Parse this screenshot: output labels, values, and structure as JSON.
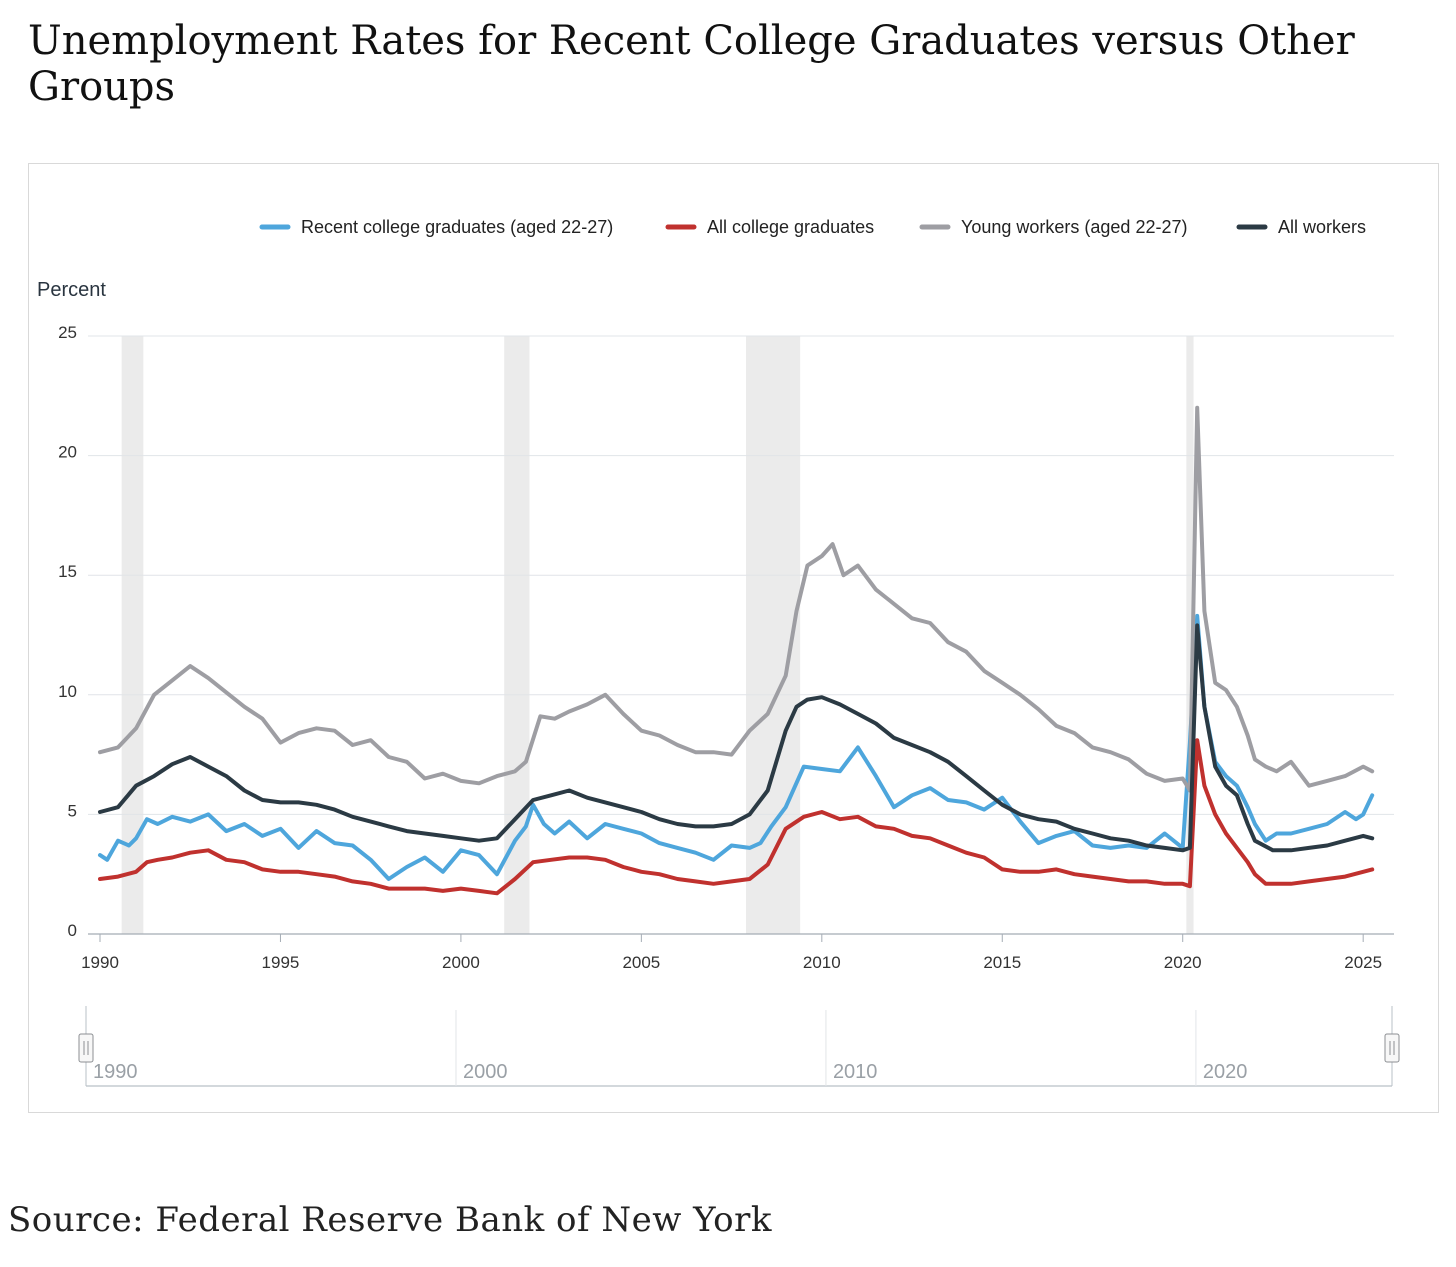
{
  "title": "Unemployment Rates for Recent College Graduates versus Other Groups",
  "source": "Source: Federal Reserve Bank of New York",
  "colors": {
    "recent_grads": "#4ea6dc",
    "all_grads": "#c0312e",
    "young_workers": "#9e9ea3",
    "all_workers": "#2b3a44",
    "recession": "#ebebeb",
    "grid": "#e1e4e8"
  },
  "chart_data": {
    "type": "line",
    "ylabel": "Percent",
    "ylim": [
      0,
      25
    ],
    "yticks": [
      0,
      5,
      10,
      15,
      20,
      25
    ],
    "xlim": [
      1990,
      2025.3
    ],
    "xticks": [
      1990,
      1995,
      2000,
      2005,
      2010,
      2015,
      2020,
      2025
    ],
    "navigator_ticks": [
      1990,
      2000,
      2010,
      2020
    ],
    "grid": true,
    "legend_position": "top",
    "recessions": [
      [
        1990.6,
        1991.2
      ],
      [
        2001.2,
        2001.9
      ],
      [
        2007.9,
        2009.4
      ],
      [
        2020.1,
        2020.3
      ]
    ],
    "series": [
      {
        "name": "Recent college graduates (aged 22-27)",
        "key": "recent_grads",
        "x": [
          1990,
          1990.2,
          1990.5,
          1990.8,
          1991,
          1991.3,
          1991.6,
          1992,
          1992.5,
          1993,
          1993.5,
          1994,
          1994.5,
          1995,
          1995.5,
          1996,
          1996.5,
          1997,
          1997.5,
          1998,
          1998.5,
          1999,
          1999.5,
          2000,
          2000.5,
          2001,
          2001.5,
          2001.8,
          2002,
          2002.3,
          2002.6,
          2003,
          2003.5,
          2004,
          2004.5,
          2005,
          2005.5,
          2006,
          2006.5,
          2007,
          2007.5,
          2008,
          2008.3,
          2008.6,
          2009,
          2009.5,
          2010,
          2010.5,
          2011,
          2011.5,
          2012,
          2012.5,
          2013,
          2013.5,
          2014,
          2014.5,
          2015,
          2015.5,
          2016,
          2016.5,
          2017,
          2017.5,
          2018,
          2018.5,
          2019,
          2019.5,
          2020,
          2020.2,
          2020.4,
          2020.6,
          2020.9,
          2021.2,
          2021.5,
          2021.8,
          2022,
          2022.3,
          2022.6,
          2023,
          2023.5,
          2024,
          2024.5,
          2024.8,
          2025,
          2025.25
        ],
        "values": [
          3.3,
          3.1,
          3.9,
          3.7,
          4.0,
          4.8,
          4.6,
          4.9,
          4.7,
          5.0,
          4.3,
          4.6,
          4.1,
          4.4,
          3.6,
          4.3,
          3.8,
          3.7,
          3.1,
          2.3,
          2.8,
          3.2,
          2.6,
          3.5,
          3.3,
          2.5,
          3.9,
          4.5,
          5.4,
          4.6,
          4.2,
          4.7,
          4.0,
          4.6,
          4.4,
          4.2,
          3.8,
          3.6,
          3.4,
          3.1,
          3.7,
          3.6,
          3.8,
          4.5,
          5.3,
          7.0,
          6.9,
          6.8,
          7.8,
          6.6,
          5.3,
          5.8,
          6.1,
          5.6,
          5.5,
          5.2,
          5.7,
          4.7,
          3.8,
          4.1,
          4.3,
          3.7,
          3.6,
          3.7,
          3.6,
          4.2,
          3.6,
          8.0,
          13.3,
          9.5,
          7.2,
          6.6,
          6.2,
          5.3,
          4.6,
          3.9,
          4.2,
          4.2,
          4.4,
          4.6,
          5.1,
          4.8,
          5.0,
          5.8
        ]
      },
      {
        "name": "All college graduates",
        "key": "all_grads",
        "x": [
          1990,
          1990.5,
          1991,
          1991.3,
          1991.6,
          1992,
          1992.5,
          1993,
          1993.5,
          1994,
          1994.5,
          1995,
          1995.5,
          1996,
          1996.5,
          1997,
          1997.5,
          1998,
          1998.5,
          1999,
          1999.5,
          2000,
          2000.5,
          2001,
          2001.5,
          2002,
          2002.5,
          2003,
          2003.5,
          2004,
          2004.5,
          2005,
          2005.5,
          2006,
          2006.5,
          2007,
          2007.5,
          2008,
          2008.5,
          2009,
          2009.5,
          2010,
          2010.5,
          2011,
          2011.5,
          2012,
          2012.5,
          2013,
          2013.5,
          2014,
          2014.5,
          2015,
          2015.5,
          2016,
          2016.5,
          2017,
          2017.5,
          2018,
          2018.5,
          2019,
          2019.5,
          2020,
          2020.2,
          2020.4,
          2020.6,
          2020.9,
          2021.2,
          2021.5,
          2021.8,
          2022,
          2022.3,
          2022.6,
          2023,
          2023.5,
          2024,
          2024.5,
          2025,
          2025.25
        ],
        "values": [
          2.3,
          2.4,
          2.6,
          3.0,
          3.1,
          3.2,
          3.4,
          3.5,
          3.1,
          3.0,
          2.7,
          2.6,
          2.6,
          2.5,
          2.4,
          2.2,
          2.1,
          1.9,
          1.9,
          1.9,
          1.8,
          1.9,
          1.8,
          1.7,
          2.3,
          3.0,
          3.1,
          3.2,
          3.2,
          3.1,
          2.8,
          2.6,
          2.5,
          2.3,
          2.2,
          2.1,
          2.2,
          2.3,
          2.9,
          4.4,
          4.9,
          5.1,
          4.8,
          4.9,
          4.5,
          4.4,
          4.1,
          4.0,
          3.7,
          3.4,
          3.2,
          2.7,
          2.6,
          2.6,
          2.7,
          2.5,
          2.4,
          2.3,
          2.2,
          2.2,
          2.1,
          2.1,
          2.0,
          8.1,
          6.2,
          5.0,
          4.2,
          3.6,
          3.0,
          2.5,
          2.1,
          2.1,
          2.1,
          2.2,
          2.3,
          2.4,
          2.6,
          2.7
        ]
      },
      {
        "name": "Young workers (aged 22-27)",
        "key": "young_workers",
        "x": [
          1990,
          1990.5,
          1991,
          1991.5,
          1992,
          1992.5,
          1993,
          1993.5,
          1994,
          1994.5,
          1995,
          1995.5,
          1996,
          1996.5,
          1997,
          1997.5,
          1998,
          1998.5,
          1999,
          1999.5,
          2000,
          2000.5,
          2001,
          2001.5,
          2001.8,
          2002.2,
          2002.6,
          2003,
          2003.5,
          2004,
          2004.5,
          2005,
          2005.5,
          2006,
          2006.5,
          2007,
          2007.5,
          2008,
          2008.5,
          2009,
          2009.3,
          2009.6,
          2010,
          2010.3,
          2010.6,
          2011,
          2011.5,
          2012,
          2012.5,
          2013,
          2013.5,
          2014,
          2014.5,
          2015,
          2015.5,
          2016,
          2016.5,
          2017,
          2017.5,
          2018,
          2018.5,
          2019,
          2019.5,
          2020,
          2020.2,
          2020.4,
          2020.6,
          2020.9,
          2021.2,
          2021.5,
          2021.8,
          2022,
          2022.3,
          2022.6,
          2023,
          2023.5,
          2024,
          2024.5,
          2025,
          2025.25
        ],
        "values": [
          7.6,
          7.8,
          8.6,
          10.0,
          10.6,
          11.2,
          10.7,
          10.1,
          9.5,
          9.0,
          8.0,
          8.4,
          8.6,
          8.5,
          7.9,
          8.1,
          7.4,
          7.2,
          6.5,
          6.7,
          6.4,
          6.3,
          6.6,
          6.8,
          7.2,
          9.1,
          9.0,
          9.3,
          9.6,
          10.0,
          9.2,
          8.5,
          8.3,
          7.9,
          7.6,
          7.6,
          7.5,
          8.5,
          9.2,
          10.8,
          13.5,
          15.4,
          15.8,
          16.3,
          15.0,
          15.4,
          14.4,
          13.8,
          13.2,
          13.0,
          12.2,
          11.8,
          11.0,
          10.5,
          10.0,
          9.4,
          8.7,
          8.4,
          7.8,
          7.6,
          7.3,
          6.7,
          6.4,
          6.5,
          6.0,
          22.0,
          13.5,
          10.5,
          10.2,
          9.5,
          8.3,
          7.3,
          7.0,
          6.8,
          7.2,
          6.2,
          6.4,
          6.6,
          7.0,
          6.8
        ]
      },
      {
        "name": "All workers",
        "key": "all_workers",
        "x": [
          1990,
          1990.5,
          1991,
          1991.5,
          1992,
          1992.5,
          1993,
          1993.5,
          1994,
          1994.5,
          1995,
          1995.5,
          1996,
          1996.5,
          1997,
          1997.5,
          1998,
          1998.5,
          1999,
          1999.5,
          2000,
          2000.5,
          2001,
          2001.5,
          2002,
          2002.5,
          2003,
          2003.5,
          2004,
          2004.5,
          2005,
          2005.5,
          2006,
          2006.5,
          2007,
          2007.5,
          2008,
          2008.5,
          2009,
          2009.3,
          2009.6,
          2010,
          2010.5,
          2011,
          2011.5,
          2012,
          2012.5,
          2013,
          2013.5,
          2014,
          2014.5,
          2015,
          2015.5,
          2016,
          2016.5,
          2017,
          2017.5,
          2018,
          2018.5,
          2019,
          2019.5,
          2020,
          2020.2,
          2020.4,
          2020.6,
          2020.9,
          2021.2,
          2021.5,
          2021.8,
          2022,
          2022.5,
          2023,
          2023.5,
          2024,
          2024.5,
          2025,
          2025.25
        ],
        "values": [
          5.1,
          5.3,
          6.2,
          6.6,
          7.1,
          7.4,
          7.0,
          6.6,
          6.0,
          5.6,
          5.5,
          5.5,
          5.4,
          5.2,
          4.9,
          4.7,
          4.5,
          4.3,
          4.2,
          4.1,
          4.0,
          3.9,
          4.0,
          4.8,
          5.6,
          5.8,
          6.0,
          5.7,
          5.5,
          5.3,
          5.1,
          4.8,
          4.6,
          4.5,
          4.5,
          4.6,
          5.0,
          6.0,
          8.5,
          9.5,
          9.8,
          9.9,
          9.6,
          9.2,
          8.8,
          8.2,
          7.9,
          7.6,
          7.2,
          6.6,
          6.0,
          5.4,
          5.0,
          4.8,
          4.7,
          4.4,
          4.2,
          4.0,
          3.9,
          3.7,
          3.6,
          3.5,
          3.6,
          12.9,
          9.5,
          7.0,
          6.2,
          5.8,
          4.6,
          3.9,
          3.5,
          3.5,
          3.6,
          3.7,
          3.9,
          4.1,
          4.0
        ]
      }
    ]
  }
}
